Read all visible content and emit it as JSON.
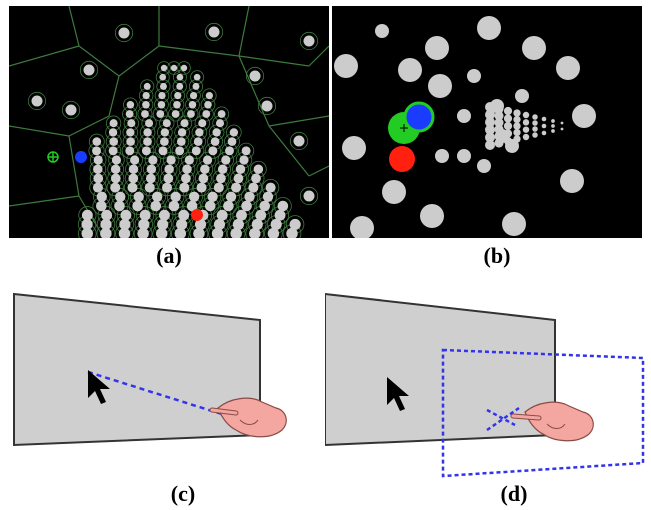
{
  "figure": {
    "panels": [
      {
        "id": "a",
        "label": "(a)"
      },
      {
        "id": "b",
        "label": "(b)"
      },
      {
        "id": "c",
        "label": "(c)"
      },
      {
        "id": "d",
        "label": "(d)"
      }
    ]
  },
  "colors": {
    "background": "#000000",
    "target": "#cccccc",
    "voronoi_edge": "#3d7a3d",
    "cursor_green": "#22cc22",
    "goal_blue": "#1a3cff",
    "distractor_red": "#ff2010",
    "screen_fill": "#cfcfcf",
    "ray": "#3333ee",
    "hand": "#f4a6a0"
  }
}
